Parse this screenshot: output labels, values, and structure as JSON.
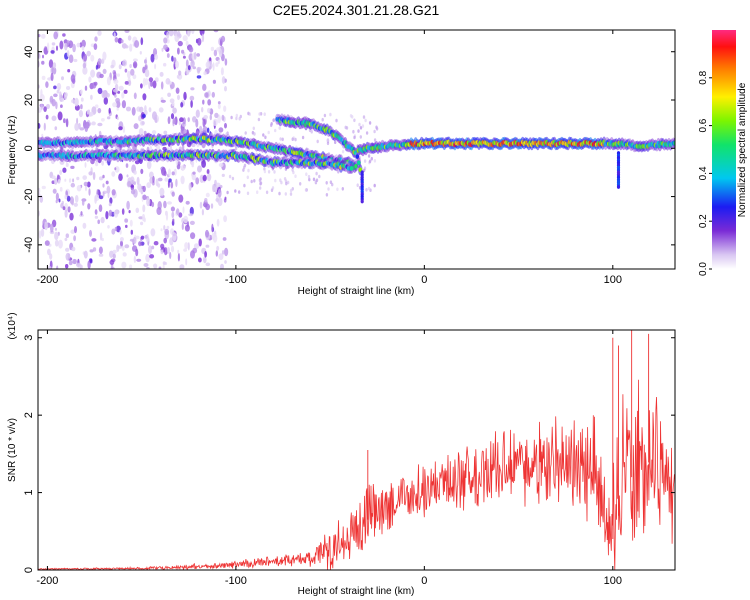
{
  "figure": {
    "title": "C2E5.2024.301.21.28.G21"
  },
  "chart_data": [
    {
      "type": "heatmap",
      "xlabel": "Height of straight line (km)",
      "ylabel": "Frequency (Hz)",
      "xlim": [
        -205,
        133
      ],
      "ylim": [
        -50,
        49
      ],
      "xticks": [
        -200,
        -100,
        0,
        100
      ],
      "yticks": [
        -40,
        -20,
        0,
        20,
        40
      ],
      "colorbar": {
        "label": "Normalized spectral amplitude",
        "range": [
          0,
          1
        ],
        "ticks": [
          0.0,
          0.2,
          0.4,
          0.6,
          0.8
        ],
        "colormap": "white-purple-blue-cyan-green-yellow-red-magenta"
      },
      "tracks": [
        {
          "description": "main",
          "points": [
            [
              -205,
              2
            ],
            [
              -160,
              3
            ],
            [
              -120,
              4
            ],
            [
              -100,
              3
            ],
            [
              -80,
              0
            ],
            [
              -60,
              -3
            ],
            [
              -40,
              -6
            ],
            [
              -36,
              -8
            ]
          ]
        },
        {
          "description": "lower",
          "points": [
            [
              -205,
              -3
            ],
            [
              -160,
              -3
            ],
            [
              -120,
              -3
            ],
            [
              -100,
              -3
            ],
            [
              -80,
              -6
            ],
            [
              -60,
              -6
            ],
            [
              -45,
              -7
            ],
            [
              -38,
              -9
            ]
          ]
        },
        {
          "description": "upper",
          "points": [
            [
              -78,
              12
            ],
            [
              -70,
              11
            ],
            [
              -60,
              10
            ],
            [
              -50,
              7
            ],
            [
              -42,
              2
            ],
            [
              -36,
              -2
            ],
            [
              -34,
              -9
            ]
          ]
        },
        {
          "description": "right",
          "points": [
            [
              -35,
              -1
            ],
            [
              -30,
              0
            ],
            [
              -20,
              1
            ],
            [
              0,
              2
            ],
            [
              40,
              2
            ],
            [
              80,
              2
            ],
            [
              100,
              2
            ],
            [
              115,
              1
            ],
            [
              133,
              2
            ]
          ]
        }
      ],
      "spikes": [
        {
          "x": -33,
          "y_from": -10,
          "y_to": -22
        },
        {
          "x": 103,
          "y_from": -2,
          "y_to": -16
        }
      ]
    },
    {
      "type": "line",
      "xlabel": "Height of straight line (km)",
      "ylabel": "SNR (10 * v/v)",
      "y_multiplier": "(x10⁴)",
      "xlim": [
        -205,
        133
      ],
      "ylim": [
        0,
        3.1
      ],
      "xticks": [
        -200,
        -100,
        0,
        100
      ],
      "yticks": [
        0,
        1,
        2,
        3
      ],
      "color": "#ee3333",
      "envelope": {
        "x": [
          -205,
          -150,
          -110,
          -80,
          -60,
          -50,
          -40,
          -30,
          -20,
          -10,
          0,
          10,
          20,
          30,
          40,
          50,
          60,
          70,
          80,
          90,
          95,
          100,
          105,
          110,
          115,
          120,
          125,
          133
        ],
        "base": [
          0.01,
          0.02,
          0.05,
          0.1,
          0.15,
          0.25,
          0.45,
          0.65,
          0.8,
          0.88,
          0.98,
          1.08,
          1.15,
          1.22,
          1.25,
          1.3,
          1.32,
          1.32,
          1.3,
          1.25,
          0.9,
          0.4,
          0.9,
          1.2,
          1.35,
          1.4,
          1.3,
          0.8
        ],
        "amp": [
          0.01,
          0.02,
          0.05,
          0.08,
          0.15,
          0.35,
          0.5,
          0.55,
          0.45,
          0.35,
          0.4,
          0.42,
          0.45,
          0.5,
          0.55,
          0.6,
          0.65,
          0.7,
          0.75,
          0.85,
          0.95,
          1.1,
          1.3,
          1.4,
          1.3,
          1.25,
          1.1,
          0.7
        ]
      },
      "peaks": [
        {
          "x": -30,
          "y": 1.55
        },
        {
          "x": 100,
          "y": 3.0
        },
        {
          "x": 103,
          "y": 2.9
        },
        {
          "x": 110,
          "y": 3.1
        },
        {
          "x": 119,
          "y": 3.05
        }
      ]
    }
  ]
}
